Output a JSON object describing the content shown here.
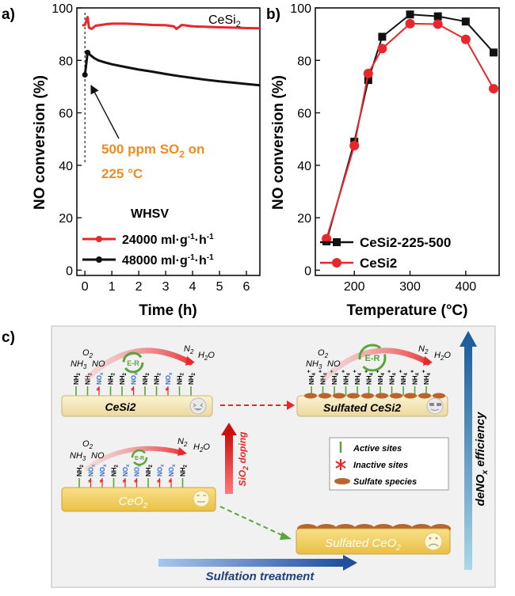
{
  "panel_a": {
    "label": "a)",
    "badge": "CeSi",
    "badge_sub": "2",
    "annotation_line1": "500 ppm SO",
    "annotation_line1_sub": "2",
    "annotation_line1_end": " on",
    "annotation_line2": "225 °C",
    "legend_title": "WHSV",
    "legend_unit_ml": "ml·g",
    "legend_unit_sup1": "-1",
    "legend_unit_h": "·h",
    "legend_unit_sup2": "-1",
    "legend_value_1": "24000",
    "legend_value_2": "48000"
  },
  "panel_b": {
    "label": "b)"
  },
  "panel_c": {
    "label": "c)",
    "cesi2_label": "CeSi2",
    "sulfated_cesi2_label": "Sulfated CeSi2",
    "ceo2_label": "CeO",
    "ceo2_sub": "2",
    "sulfated_ceo2_label": "Sulfated CeO",
    "sulfated_ceo2_sub": "2",
    "er_label": "E-R",
    "nh3": "NH",
    "nh3_sub": "3",
    "no": "NO",
    "o2": "O",
    "o2_sub": "2",
    "n2": "N",
    "n2_sub": "2",
    "h2o_a": "H",
    "h2o_sub": "2",
    "h2o_b": "O",
    "site_nh2": "NH",
    "site_nh2_sub": "2",
    "site_nh4": "NH",
    "site_nh4_sub": "4",
    "site_nh4_sup": "+",
    "site_nox": "NO",
    "site_nox_sub": "x",
    "doping_label": "SiO",
    "doping_sub": "2",
    "doping_end": " doping",
    "legend_active": "Active sites",
    "legend_inactive": "Inactive sites",
    "legend_sulfate": "Sulfate species",
    "sulfation_label": "Sulfation treatment",
    "efficiency_label": "deNO",
    "efficiency_sub": "x",
    "efficiency_end": " efficiency"
  },
  "colors": {
    "red": "#e8262b",
    "black": "#111111",
    "orange": "#f08c1e",
    "green": "#5aa53a",
    "blue": "#2d6cc0",
    "cream": "#f7e7b4",
    "ceo2_fill": "#f2d16b",
    "sulfate": "#b8642c",
    "panel_bg": "#f1f1f1"
  },
  "chart_data": [
    {
      "type": "line",
      "xlabel": "Time (h)",
      "ylabel": "NO conversion (%)",
      "xlim": [
        -0.3,
        6.5
      ],
      "ylim": [
        -2,
        100
      ],
      "xticks": [
        0,
        1,
        2,
        3,
        4,
        5,
        6
      ],
      "yticks": [
        0,
        20,
        40,
        60,
        80,
        100
      ],
      "annotation_time_h": 0,
      "series": [
        {
          "name": "24000 ml·g-1·h-1",
          "color": "#e8262b",
          "x": [
            -0.1,
            0.0,
            0.1,
            0.15,
            0.25,
            0.4,
            0.6,
            0.8,
            1.0,
            1.5,
            2.0,
            2.5,
            3.0,
            3.3,
            3.4,
            3.6,
            4.0,
            4.5,
            5.0,
            5.5,
            6.0,
            6.5
          ],
          "y": [
            93.3,
            93.5,
            96.5,
            92.5,
            92.0,
            93.2,
            93.5,
            93.8,
            94.0,
            94.0,
            93.8,
            93.5,
            93.4,
            93.0,
            92.0,
            93.5,
            93.0,
            92.8,
            92.6,
            92.5,
            92.3,
            92.2
          ]
        },
        {
          "name": "48000 ml·g-1·h-1",
          "color": "#111111",
          "x": [
            0.0,
            0.1,
            0.2,
            0.35,
            0.5,
            0.75,
            1.0,
            1.5,
            2.0,
            2.5,
            3.0,
            3.5,
            4.0,
            4.5,
            5.0,
            5.5,
            6.0,
            6.5
          ],
          "y": [
            74.5,
            83.0,
            82.0,
            80.8,
            80.0,
            79.2,
            78.5,
            77.5,
            76.5,
            75.7,
            74.8,
            74.0,
            73.3,
            72.6,
            72.0,
            71.5,
            71.0,
            70.5
          ],
          "markers_x": [
            0.0,
            0.1
          ]
        }
      ]
    },
    {
      "type": "line",
      "xlabel": "Temperature (°C)",
      "ylabel": "NO conversion (%)",
      "xlim": [
        130,
        460
      ],
      "ylim": [
        -2,
        100
      ],
      "xticks": [
        200,
        300,
        400
      ],
      "yticks": [
        0,
        20,
        40,
        60,
        80,
        100
      ],
      "series": [
        {
          "name": "CeSi2-225-500",
          "color": "#111111",
          "marker": "square",
          "x": [
            150,
            200,
            225,
            250,
            300,
            350,
            400,
            450
          ],
          "y": [
            11,
            49,
            72.5,
            89,
            97.5,
            96.8,
            94.8,
            83
          ]
        },
        {
          "name": "CeSi2",
          "color": "#e8262b",
          "marker": "circle",
          "x": [
            150,
            200,
            225,
            250,
            300,
            350,
            400,
            450
          ],
          "y": [
            12,
            47.5,
            75,
            84.5,
            94,
            93.8,
            88,
            69.2
          ]
        }
      ]
    }
  ]
}
